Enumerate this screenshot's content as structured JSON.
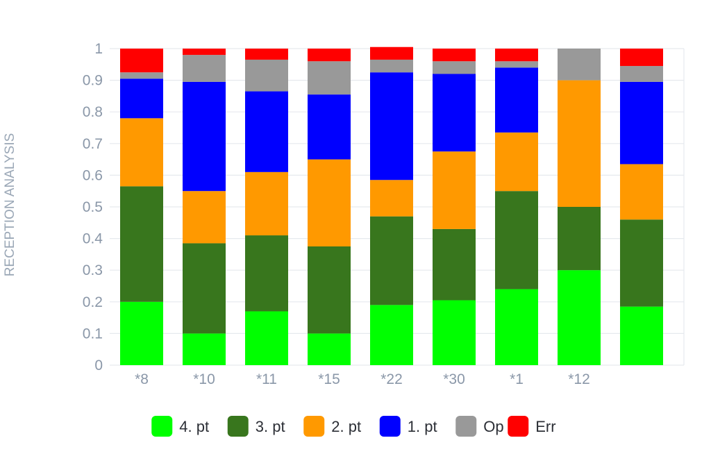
{
  "chart_data": {
    "type": "bar",
    "stacked": true,
    "ylabel": "RECEPTION ANALYSIS",
    "ylim": [
      0,
      1
    ],
    "yticks": [
      "0",
      "0.1",
      "0.2",
      "0.3",
      "0.4",
      "0.5",
      "0.6",
      "0.7",
      "0.8",
      "0.9",
      "1"
    ],
    "categories": [
      "*8",
      "*10",
      "*11",
      "*15",
      "*22",
      "*30",
      "*1",
      "*12",
      ""
    ],
    "grid": true,
    "legend_position": "bottom",
    "series": [
      {
        "name": "4. pt",
        "color": "#00ff00",
        "values": [
          0.2,
          0.1,
          0.17,
          0.1,
          0.19,
          0.205,
          0.24,
          0.3,
          0.185
        ]
      },
      {
        "name": "3. pt",
        "color": "#38761d",
        "values": [
          0.365,
          0.285,
          0.24,
          0.275,
          0.28,
          0.225,
          0.31,
          0.2,
          0.275
        ]
      },
      {
        "name": "2. pt",
        "color": "#ff9900",
        "values": [
          0.215,
          0.165,
          0.2,
          0.275,
          0.115,
          0.245,
          0.185,
          0.4,
          0.175
        ]
      },
      {
        "name": "1. pt",
        "color": "#0000ff",
        "values": [
          0.125,
          0.345,
          0.255,
          0.205,
          0.34,
          0.245,
          0.205,
          0.0,
          0.26
        ]
      },
      {
        "name": "Op",
        "color": "#999999",
        "values": [
          0.02,
          0.085,
          0.1,
          0.105,
          0.04,
          0.04,
          0.02,
          0.1,
          0.05
        ]
      },
      {
        "name": "Err",
        "color": "#ff0000",
        "values": [
          0.075,
          0.02,
          0.035,
          0.04,
          0.04,
          0.04,
          0.04,
          0.0,
          0.055
        ]
      }
    ]
  }
}
